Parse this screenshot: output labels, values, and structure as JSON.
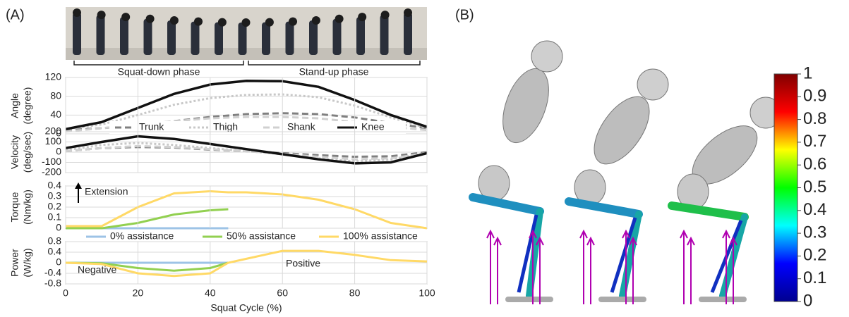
{
  "panel_a_label": "(A)",
  "panel_b_label": "(B)",
  "phases": [
    "Squat-down phase",
    "Stand-up phase"
  ],
  "chart_data": [
    {
      "type": "line",
      "ylabel": [
        "Angle",
        "(degree)"
      ],
      "x": [
        0,
        10,
        20,
        30,
        40,
        50,
        60,
        70,
        80,
        90,
        100
      ],
      "xlim": [
        0,
        100
      ],
      "ylim": [
        0,
        120
      ],
      "yticks": [
        0,
        40,
        80,
        120
      ],
      "grid": true,
      "series": [
        {
          "name": "Trunk",
          "color": "#808080",
          "dash": "dashed",
          "values": [
            8,
            12,
            18,
            27,
            36,
            42,
            44,
            42,
            35,
            23,
            12
          ]
        },
        {
          "name": "Thigh",
          "color": "#c8c8c8",
          "dash": "dotted",
          "values": [
            10,
            20,
            40,
            62,
            76,
            83,
            84,
            78,
            60,
            35,
            12
          ]
        },
        {
          "name": "Shank",
          "color": "#d0d0d0",
          "dash": "dashed",
          "values": [
            5,
            12,
            20,
            27,
            33,
            36,
            36,
            33,
            25,
            15,
            8
          ]
        },
        {
          "name": "Knee",
          "color": "#111111",
          "dash": "solid",
          "values": [
            10,
            25,
            55,
            85,
            105,
            113,
            112,
            100,
            72,
            40,
            15
          ]
        }
      ]
    },
    {
      "type": "line",
      "ylabel": [
        "Velocity",
        "(deg/sec)"
      ],
      "x": [
        0,
        10,
        20,
        30,
        40,
        50,
        60,
        70,
        80,
        90,
        100
      ],
      "xlim": [
        0,
        100
      ],
      "ylim": [
        -200,
        200
      ],
      "yticks": [
        -200,
        -100,
        0,
        100,
        200
      ],
      "grid": true,
      "series": [
        {
          "color": "#808080",
          "dash": "dashed",
          "values": [
            10,
            40,
            50,
            45,
            25,
            10,
            -10,
            -30,
            -45,
            -40,
            0
          ]
        },
        {
          "color": "#c8c8c8",
          "dash": "dotted",
          "values": [
            20,
            70,
            90,
            70,
            40,
            10,
            -20,
            -60,
            -90,
            -70,
            -10
          ]
        },
        {
          "color": "#d0d0d0",
          "dash": "dashed",
          "values": [
            10,
            40,
            60,
            50,
            30,
            10,
            -15,
            -45,
            -70,
            -60,
            -10
          ]
        },
        {
          "color": "#111111",
          "dash": "solid",
          "values": [
            40,
            100,
            155,
            130,
            80,
            30,
            -20,
            -70,
            -110,
            -100,
            -10
          ]
        }
      ]
    },
    {
      "type": "line",
      "ylabel": [
        "Torque",
        "(Nm/kg)"
      ],
      "annotations": [
        "Extension"
      ],
      "x": [
        0,
        10,
        20,
        30,
        40,
        45,
        50,
        60,
        70,
        80,
        90,
        100
      ],
      "xlim": [
        0,
        100
      ],
      "ylim": [
        0,
        0.4
      ],
      "yticks": [
        0,
        0.1,
        0.2,
        0.3,
        0.4
      ],
      "grid": true,
      "series": [
        {
          "name": "0% assistance",
          "color": "#9dc3e6",
          "dash": "solid",
          "values": [
            0,
            0,
            0,
            0,
            0,
            0,
            null,
            null,
            null,
            null,
            null,
            null
          ]
        },
        {
          "name": "50% assistance",
          "color": "#92d050",
          "dash": "solid",
          "values": [
            0,
            0,
            0.05,
            0.13,
            0.17,
            0.18,
            null,
            null,
            null,
            null,
            null,
            null
          ]
        },
        {
          "name": "100% assistance",
          "color": "#ffd966",
          "dash": "solid",
          "values": [
            0.02,
            0.02,
            0.2,
            0.33,
            0.35,
            0.34,
            0.34,
            0.32,
            0.27,
            0.18,
            0.05,
            0
          ]
        }
      ]
    },
    {
      "type": "line",
      "ylabel": [
        "Power",
        "(W/kg)"
      ],
      "annotations": [
        "Negative",
        "Positive"
      ],
      "xlabel": "Squat Cycle (%)",
      "x": [
        0,
        10,
        20,
        30,
        40,
        45,
        50,
        60,
        70,
        80,
        90,
        100
      ],
      "xlim": [
        0,
        100
      ],
      "xticks": [
        0,
        20,
        40,
        60,
        80,
        100
      ],
      "ylim": [
        -0.8,
        0.8
      ],
      "yticks": [
        -0.8,
        -0.4,
        0,
        0.4,
        0.8
      ],
      "grid": true,
      "series": [
        {
          "color": "#9dc3e6",
          "dash": "solid",
          "values": [
            0,
            0,
            0,
            0,
            0,
            0,
            null,
            null,
            null,
            null,
            null,
            null
          ]
        },
        {
          "color": "#92d050",
          "dash": "solid",
          "values": [
            0,
            -0.02,
            -0.2,
            -0.3,
            -0.2,
            0,
            null,
            null,
            null,
            null,
            null,
            null
          ]
        },
        {
          "color": "#ffd966",
          "dash": "solid",
          "values": [
            0,
            -0.05,
            -0.4,
            -0.5,
            -0.4,
            0,
            0.15,
            0.45,
            0.45,
            0.3,
            0.1,
            0.05
          ]
        }
      ]
    }
  ],
  "colorbar": {
    "ylim": [
      0,
      1
    ],
    "yticks": [
      0,
      0.1,
      0.2,
      0.3,
      0.4,
      0.5,
      0.6,
      0.7,
      0.8,
      0.9,
      1
    ],
    "colors": [
      "#00008f",
      "#0000ff",
      "#00ffff",
      "#00ff00",
      "#ffff00",
      "#ff0000",
      "#800000"
    ]
  }
}
